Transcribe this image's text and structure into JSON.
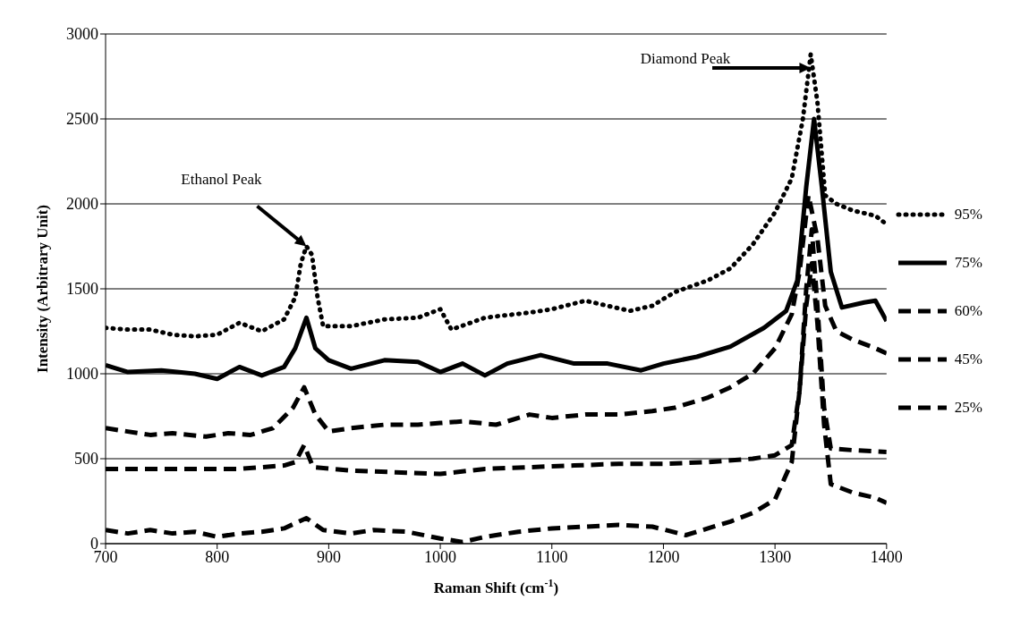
{
  "chart_data": {
    "type": "line",
    "xlabel": "Raman Shift (cm$^{-1}$)",
    "ylabel": "Intensity (Arbitrary Unit)",
    "xlim": [
      700,
      1400
    ],
    "xticks": [
      700,
      800,
      900,
      1000,
      1100,
      1200,
      1300,
      1400
    ],
    "ylim": [
      0,
      3000
    ],
    "yticks": [
      0,
      500,
      1000,
      1500,
      2000,
      2500,
      3000
    ],
    "grid": "y",
    "legend": "right",
    "marker": "none",
    "annotations": [
      {
        "text": "Ethanol Peak",
        "x": 880,
        "y": 1750
      },
      {
        "text": "Diamond Peak",
        "x": 1332,
        "y": 2800
      }
    ],
    "series": [
      {
        "name": "95%",
        "color": "#000000",
        "line_style": "dotted",
        "x": [
          700,
          720,
          740,
          760,
          780,
          800,
          820,
          840,
          860,
          870,
          875,
          880,
          885,
          890,
          895,
          920,
          950,
          980,
          1000,
          1010,
          1040,
          1080,
          1100,
          1130,
          1150,
          1170,
          1190,
          1210,
          1240,
          1260,
          1280,
          1300,
          1315,
          1325,
          1332,
          1338,
          1345,
          1355,
          1370,
          1390,
          1400
        ],
        "values": [
          1270,
          1260,
          1260,
          1230,
          1220,
          1230,
          1300,
          1250,
          1320,
          1450,
          1650,
          1750,
          1700,
          1450,
          1280,
          1280,
          1320,
          1330,
          1380,
          1260,
          1330,
          1360,
          1380,
          1430,
          1400,
          1370,
          1400,
          1480,
          1550,
          1620,
          1760,
          1950,
          2150,
          2500,
          2880,
          2600,
          2050,
          2000,
          1960,
          1930,
          1880
        ]
      },
      {
        "name": "75%",
        "color": "#000000",
        "line_style": "solid",
        "x": [
          700,
          720,
          750,
          780,
          800,
          820,
          840,
          860,
          870,
          880,
          888,
          900,
          920,
          950,
          980,
          1000,
          1020,
          1040,
          1060,
          1090,
          1120,
          1150,
          1180,
          1200,
          1230,
          1260,
          1290,
          1310,
          1320,
          1328,
          1335,
          1342,
          1350,
          1360,
          1380,
          1390,
          1400
        ],
        "values": [
          1050,
          1010,
          1020,
          1000,
          970,
          1040,
          990,
          1040,
          1150,
          1330,
          1150,
          1080,
          1030,
          1080,
          1070,
          1010,
          1060,
          990,
          1060,
          1110,
          1060,
          1060,
          1020,
          1060,
          1100,
          1160,
          1270,
          1370,
          1550,
          2100,
          2500,
          2100,
          1600,
          1390,
          1420,
          1430,
          1310
        ]
      },
      {
        "name": "60%",
        "color": "#000000",
        "line_style": "dashed",
        "x": [
          700,
          720,
          740,
          760,
          790,
          810,
          830,
          850,
          868,
          878,
          888,
          900,
          920,
          950,
          980,
          1000,
          1020,
          1050,
          1080,
          1100,
          1130,
          1160,
          1190,
          1210,
          1240,
          1260,
          1280,
          1300,
          1315,
          1322,
          1330,
          1338,
          1345,
          1355,
          1370,
          1390,
          1400
        ],
        "values": [
          680,
          660,
          640,
          650,
          630,
          650,
          640,
          680,
          800,
          920,
          760,
          660,
          680,
          700,
          700,
          710,
          720,
          700,
          760,
          740,
          760,
          760,
          780,
          800,
          860,
          920,
          1000,
          1150,
          1350,
          1600,
          2050,
          1800,
          1400,
          1250,
          1200,
          1150,
          1120
        ]
      },
      {
        "name": "45%",
        "color": "#000000",
        "line_style": "dashed",
        "x": [
          700,
          740,
          780,
          820,
          860,
          870,
          878,
          886,
          920,
          960,
          1000,
          1040,
          1080,
          1120,
          1160,
          1200,
          1240,
          1280,
          1300,
          1315,
          1322,
          1328,
          1333,
          1338,
          1344,
          1350,
          1370,
          1400
        ],
        "values": [
          440,
          440,
          440,
          440,
          460,
          480,
          580,
          450,
          430,
          420,
          410,
          440,
          450,
          460,
          470,
          470,
          480,
          500,
          520,
          580,
          900,
          1500,
          1850,
          1400,
          800,
          560,
          550,
          540
        ]
      },
      {
        "name": "25%",
        "color": "#000000",
        "line_style": "dashed",
        "x": [
          700,
          720,
          740,
          760,
          780,
          800,
          820,
          840,
          860,
          880,
          895,
          920,
          940,
          970,
          1000,
          1020,
          1040,
          1070,
          1100,
          1130,
          1160,
          1190,
          1220,
          1240,
          1260,
          1280,
          1300,
          1315,
          1322,
          1328,
          1333,
          1338,
          1344,
          1350,
          1370,
          1390,
          1400
        ],
        "values": [
          80,
          60,
          80,
          60,
          70,
          40,
          60,
          70,
          90,
          150,
          80,
          60,
          80,
          70,
          30,
          10,
          40,
          70,
          90,
          100,
          110,
          100,
          50,
          90,
          130,
          180,
          260,
          480,
          900,
          1400,
          1650,
          1300,
          700,
          350,
          300,
          270,
          240
        ]
      }
    ]
  }
}
